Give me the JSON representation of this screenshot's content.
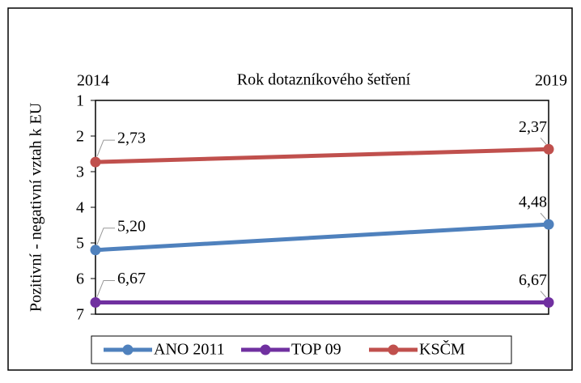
{
  "chart_data": {
    "type": "line",
    "x_label": "Rok dotazníkového šetření",
    "y_label": "Pozitivní - negativní vztah k EU",
    "categories": [
      "2014",
      "2019"
    ],
    "series": [
      {
        "name": "ANO 2011",
        "color": "#4f81bd",
        "values": [
          5.2,
          4.48
        ],
        "value_labels": [
          "5,20",
          "4,48"
        ]
      },
      {
        "name": "TOP 09",
        "color": "#7030a0",
        "values": [
          6.67,
          6.67
        ],
        "value_labels": [
          "6,67",
          "6,67"
        ]
      },
      {
        "name": "KSČM",
        "color": "#c0504d",
        "values": [
          2.73,
          2.37
        ],
        "value_labels": [
          "2,73",
          "2,37"
        ]
      }
    ],
    "ylim": [
      1,
      7
    ],
    "yticks": [
      1,
      2,
      3,
      4,
      5,
      6,
      7
    ],
    "y_inverted": true,
    "legend": "bottom"
  }
}
